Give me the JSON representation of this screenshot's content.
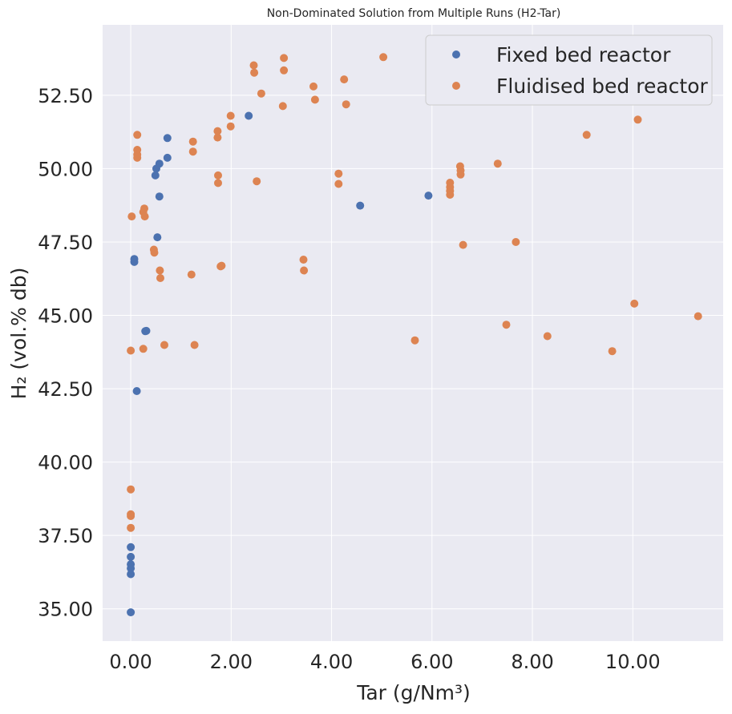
{
  "chart_data": {
    "type": "scatter",
    "title": "Non-Dominated Solution from Multiple Runs (H2-Tar)",
    "xlabel": "Tar (g/Nm³)",
    "ylabel": "H₂ (vol.% db)",
    "xlim": [
      -0.56,
      11.8
    ],
    "ylim": [
      33.9,
      54.9
    ],
    "xticks": [
      0,
      2,
      4,
      6,
      8,
      10
    ],
    "xtick_labels": [
      "0.00",
      "2.00",
      "4.00",
      "6.00",
      "8.00",
      "10.00"
    ],
    "yticks": [
      35,
      37.5,
      40,
      42.5,
      45,
      47.5,
      50,
      52.5
    ],
    "ytick_labels": [
      "35.00",
      "37.50",
      "40.00",
      "42.50",
      "45.00",
      "47.50",
      "50.00",
      "52.50"
    ],
    "grid": true,
    "legend_position": "top-right",
    "background": "#eaeaf2",
    "series": [
      {
        "name": "Fixed bed reactor",
        "color": "#4c72b0",
        "points": [
          [
            0.0,
            34.88
          ],
          [
            0.0,
            36.18
          ],
          [
            0.0,
            36.38
          ],
          [
            0.0,
            36.52
          ],
          [
            0.0,
            36.77
          ],
          [
            0.0,
            37.1
          ],
          [
            0.07,
            46.82
          ],
          [
            0.07,
            46.92
          ],
          [
            0.12,
            42.42
          ],
          [
            0.29,
            44.46
          ],
          [
            0.31,
            44.47
          ],
          [
            0.49,
            49.77
          ],
          [
            0.51,
            50.0
          ],
          [
            0.53,
            47.66
          ],
          [
            0.57,
            49.05
          ],
          [
            0.57,
            50.17
          ],
          [
            0.73,
            51.04
          ],
          [
            0.73,
            50.37
          ],
          [
            2.35,
            51.8
          ],
          [
            4.57,
            48.74
          ],
          [
            5.93,
            49.08
          ]
        ]
      },
      {
        "name": "Fluidised bed reactor",
        "color": "#dd8452",
        "points": [
          [
            0.0,
            43.8
          ],
          [
            0.02,
            48.37
          ],
          [
            0.0,
            39.07
          ],
          [
            0.0,
            38.22
          ],
          [
            0.0,
            38.16
          ],
          [
            0.0,
            37.76
          ],
          [
            0.13,
            51.15
          ],
          [
            0.13,
            50.64
          ],
          [
            0.13,
            50.48
          ],
          [
            0.13,
            50.37
          ],
          [
            0.25,
            43.86
          ],
          [
            0.25,
            48.52
          ],
          [
            0.27,
            48.64
          ],
          [
            0.28,
            48.37
          ],
          [
            0.46,
            47.24
          ],
          [
            0.47,
            47.14
          ],
          [
            0.58,
            46.53
          ],
          [
            0.59,
            46.27
          ],
          [
            0.67,
            43.99
          ],
          [
            1.21,
            46.39
          ],
          [
            1.24,
            50.92
          ],
          [
            1.24,
            50.58
          ],
          [
            1.27,
            43.99
          ],
          [
            1.73,
            51.28
          ],
          [
            1.73,
            51.06
          ],
          [
            1.74,
            49.77
          ],
          [
            1.74,
            49.51
          ],
          [
            1.79,
            46.67
          ],
          [
            1.81,
            46.69
          ],
          [
            1.99,
            51.8
          ],
          [
            1.99,
            51.44
          ],
          [
            2.45,
            53.52
          ],
          [
            2.46,
            53.27
          ],
          [
            2.51,
            49.57
          ],
          [
            2.6,
            52.56
          ],
          [
            3.03,
            52.13
          ],
          [
            3.05,
            53.77
          ],
          [
            3.05,
            53.35
          ],
          [
            3.44,
            46.9
          ],
          [
            3.45,
            46.53
          ],
          [
            3.64,
            52.8
          ],
          [
            3.67,
            52.35
          ],
          [
            4.14,
            49.83
          ],
          [
            4.14,
            49.48
          ],
          [
            4.25,
            53.04
          ],
          [
            4.29,
            52.19
          ],
          [
            5.03,
            53.8
          ],
          [
            5.66,
            44.15
          ],
          [
            6.36,
            49.52
          ],
          [
            6.36,
            49.37
          ],
          [
            6.36,
            49.24
          ],
          [
            6.36,
            49.11
          ],
          [
            6.56,
            50.08
          ],
          [
            6.57,
            49.94
          ],
          [
            6.57,
            49.8
          ],
          [
            6.62,
            47.4
          ],
          [
            7.31,
            50.17
          ],
          [
            7.48,
            44.68
          ],
          [
            7.67,
            47.5
          ],
          [
            8.3,
            44.29
          ],
          [
            9.08,
            51.15
          ],
          [
            9.59,
            43.78
          ],
          [
            10.03,
            45.4
          ],
          [
            10.1,
            51.67
          ],
          [
            11.3,
            44.97
          ]
        ]
      }
    ]
  }
}
